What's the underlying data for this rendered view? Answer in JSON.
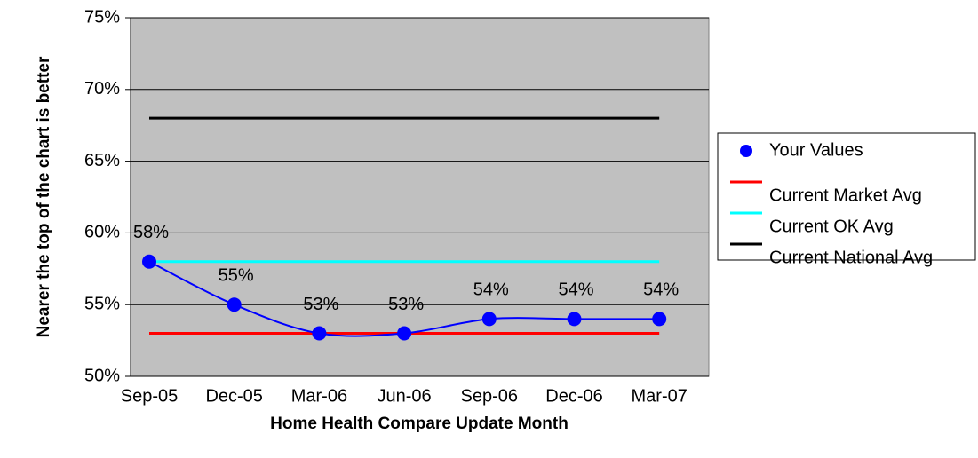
{
  "chart_data": {
    "type": "line",
    "x_label": "Home Health Compare Update Month",
    "y_label": "Nearer the top of the chart is better",
    "categories": [
      "Sep-05",
      "Dec-05",
      "Mar-06",
      "Jun-06",
      "Sep-06",
      "Dec-06",
      "Mar-07"
    ],
    "ylim": [
      50,
      75
    ],
    "yticks": [
      {
        "value": 50,
        "label": "50%"
      },
      {
        "value": 55,
        "label": "55%"
      },
      {
        "value": 60,
        "label": "60%"
      },
      {
        "value": 65,
        "label": "65%"
      },
      {
        "value": 70,
        "label": "70%"
      },
      {
        "value": 75,
        "label": "75%"
      }
    ],
    "grid": true,
    "legend": "right",
    "series": [
      {
        "name": "Your Values",
        "color": "#0000ff",
        "marker": true,
        "smooth": true,
        "values": [
          58,
          55,
          53,
          53,
          54,
          54,
          54
        ],
        "value_labels": [
          "58%",
          "55%",
          "53%",
          "53%",
          "54%",
          "54%",
          "54%"
        ]
      },
      {
        "name": "Current Market Avg",
        "color": "#ff0000",
        "values": [
          53,
          53,
          53,
          53,
          53,
          53,
          53
        ]
      },
      {
        "name": "Current OK Avg",
        "color": "#00ffff",
        "values": [
          58,
          58,
          58,
          58,
          58,
          58,
          58
        ]
      },
      {
        "name": "Current National Avg",
        "color": "#000000",
        "values": [
          68,
          68,
          68,
          68,
          68,
          68,
          68
        ]
      }
    ]
  }
}
